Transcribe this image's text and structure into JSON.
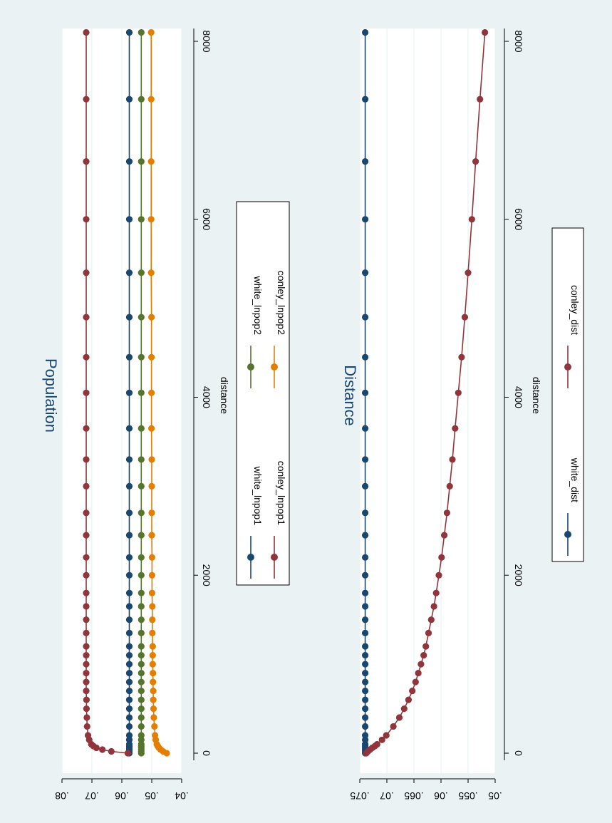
{
  "figure": {
    "background": "#eaf2f3"
  },
  "chart_data": [
    {
      "type": "line",
      "title": "Population",
      "xlabel": "distance",
      "ylabel": "",
      "xlim": [
        0,
        8000
      ],
      "ylim": [
        0.04,
        0.08
      ],
      "x_ticks": [
        "0",
        "2000",
        "4000",
        "6000",
        "8000"
      ],
      "y_ticks": [
        ".04",
        ".05",
        ".06",
        ".07",
        ".08"
      ],
      "grid": true,
      "legend_position": "right",
      "legend_columns": 2,
      "series": [
        {
          "name": "white_lnpop1",
          "color": "#1a476f",
          "x": [
            0,
            20,
            40,
            60,
            80,
            100,
            150,
            200,
            300,
            400,
            500,
            600,
            700,
            800,
            900,
            1000,
            1100,
            1200,
            1350,
            1500,
            1650,
            1800,
            2000,
            2200,
            2450,
            2700,
            3000,
            3300,
            3650,
            4050,
            4450,
            4900,
            5400,
            6000,
            6650,
            7350,
            8100
          ],
          "y": [
            0.0575,
            0.0575,
            0.0575,
            0.0575,
            0.0575,
            0.0575,
            0.0575,
            0.0575,
            0.0575,
            0.0575,
            0.0575,
            0.0575,
            0.0575,
            0.0575,
            0.0575,
            0.0575,
            0.0575,
            0.0575,
            0.0575,
            0.0575,
            0.0575,
            0.0575,
            0.0575,
            0.0575,
            0.0575,
            0.0575,
            0.0575,
            0.0575,
            0.0575,
            0.0575,
            0.0575,
            0.0575,
            0.0575,
            0.0575,
            0.0575,
            0.0575,
            0.0575
          ]
        },
        {
          "name": "conley_lnpop1",
          "color": "#90353b",
          "x": [
            0,
            20,
            40,
            60,
            80,
            100,
            150,
            200,
            300,
            400,
            500,
            600,
            700,
            800,
            900,
            1000,
            1100,
            1200,
            1350,
            1500,
            1650,
            1800,
            2000,
            2200,
            2450,
            2700,
            3000,
            3300,
            3650,
            4050,
            4450,
            4900,
            5400,
            6000,
            6650,
            7350,
            8100
          ],
          "y": [
            0.058,
            0.0635,
            0.0665,
            0.0685,
            0.0695,
            0.0702,
            0.0709,
            0.0713,
            0.0716,
            0.0717,
            0.0718,
            0.0718,
            0.0719,
            0.0719,
            0.0719,
            0.0719,
            0.0719,
            0.0719,
            0.0719,
            0.0719,
            0.0719,
            0.0719,
            0.0719,
            0.0719,
            0.0719,
            0.0719,
            0.0719,
            0.0719,
            0.0719,
            0.0719,
            0.0719,
            0.0719,
            0.0719,
            0.0719,
            0.0719,
            0.0719,
            0.0719
          ]
        },
        {
          "name": "white_lnpop2",
          "color": "#55752f",
          "x": [
            0,
            20,
            40,
            60,
            80,
            100,
            150,
            200,
            300,
            400,
            500,
            600,
            700,
            800,
            900,
            1000,
            1100,
            1200,
            1350,
            1500,
            1650,
            1800,
            2000,
            2200,
            2450,
            2700,
            3000,
            3300,
            3650,
            4050,
            4450,
            4900,
            5400,
            6000,
            6650,
            7350,
            8100
          ],
          "y": [
            0.0535,
            0.0535,
            0.0535,
            0.0535,
            0.0535,
            0.0535,
            0.0535,
            0.0535,
            0.0535,
            0.0535,
            0.0535,
            0.0535,
            0.0535,
            0.0535,
            0.0535,
            0.0535,
            0.0535,
            0.0535,
            0.0535,
            0.0535,
            0.0535,
            0.0535,
            0.0535,
            0.0535,
            0.0535,
            0.0535,
            0.0535,
            0.0535,
            0.0535,
            0.0535,
            0.0535,
            0.0535,
            0.0535,
            0.0535,
            0.0535,
            0.0535,
            0.0535
          ]
        },
        {
          "name": "conley_lnpop2",
          "color": "#e37e00",
          "x": [
            0,
            20,
            40,
            60,
            80,
            100,
            150,
            200,
            300,
            400,
            500,
            600,
            700,
            800,
            900,
            1000,
            1100,
            1200,
            1350,
            1500,
            1650,
            1800,
            2000,
            2200,
            2450,
            2700,
            3000,
            3300,
            3650,
            4050,
            4450,
            4900,
            5400,
            6000,
            6650,
            7350,
            8100
          ],
          "y": [
            0.045,
            0.0462,
            0.047,
            0.0476,
            0.048,
            0.0483,
            0.0487,
            0.0489,
            0.0491,
            0.0493,
            0.0494,
            0.0495,
            0.0495,
            0.0496,
            0.0496,
            0.0497,
            0.0497,
            0.0497,
            0.0498,
            0.0498,
            0.0498,
            0.0499,
            0.0499,
            0.0499,
            0.05,
            0.05,
            0.05,
            0.05,
            0.0501,
            0.0501,
            0.0501,
            0.0501,
            0.0502,
            0.0502,
            0.0502,
            0.0502,
            0.0502
          ]
        }
      ]
    },
    {
      "type": "line",
      "title": "Distance",
      "xlabel": "distance",
      "ylabel": "",
      "xlim": [
        0,
        8000
      ],
      "ylim": [
        0.05,
        0.075
      ],
      "x_ticks": [
        "0",
        "2000",
        "4000",
        "6000",
        "8000"
      ],
      "y_ticks": [
        ".05",
        ".055",
        ".06",
        ".065",
        ".07",
        ".075"
      ],
      "grid": true,
      "legend_position": "right",
      "legend_columns": 2,
      "series": [
        {
          "name": "white_dist",
          "color": "#1a476f",
          "x": [
            0,
            20,
            40,
            60,
            80,
            100,
            150,
            200,
            300,
            400,
            500,
            600,
            700,
            800,
            900,
            1000,
            1100,
            1200,
            1350,
            1500,
            1650,
            1800,
            2000,
            2200,
            2450,
            2700,
            3000,
            3300,
            3650,
            4050,
            4450,
            4900,
            5400,
            6000,
            6650,
            7350,
            8100
          ],
          "y": [
            0.074,
            0.074,
            0.074,
            0.074,
            0.074,
            0.074,
            0.074,
            0.074,
            0.074,
            0.074,
            0.074,
            0.074,
            0.074,
            0.074,
            0.074,
            0.074,
            0.074,
            0.074,
            0.074,
            0.074,
            0.074,
            0.074,
            0.074,
            0.074,
            0.074,
            0.074,
            0.074,
            0.074,
            0.074,
            0.074,
            0.074,
            0.074,
            0.074,
            0.074,
            0.074,
            0.074,
            0.074
          ]
        },
        {
          "name": "conley_dist",
          "color": "#90353b",
          "x": [
            0,
            20,
            40,
            60,
            80,
            100,
            150,
            200,
            300,
            400,
            500,
            600,
            700,
            800,
            900,
            1000,
            1100,
            1200,
            1350,
            1500,
            1650,
            1800,
            2000,
            2200,
            2450,
            2700,
            3000,
            3300,
            3650,
            4050,
            4450,
            4900,
            5400,
            6000,
            6650,
            7350,
            8100
          ],
          "y": [
            0.0738,
            0.0735,
            0.0731,
            0.0727,
            0.0722,
            0.0718,
            0.0709,
            0.0701,
            0.0688,
            0.0677,
            0.0668,
            0.066,
            0.0653,
            0.0647,
            0.0642,
            0.0637,
            0.0632,
            0.0628,
            0.0623,
            0.0618,
            0.0613,
            0.0609,
            0.0604,
            0.0599,
            0.0594,
            0.0589,
            0.0584,
            0.0579,
            0.0574,
            0.0568,
            0.0562,
            0.0556,
            0.055,
            0.0543,
            0.0536,
            0.0528,
            0.0519
          ]
        }
      ]
    }
  ]
}
